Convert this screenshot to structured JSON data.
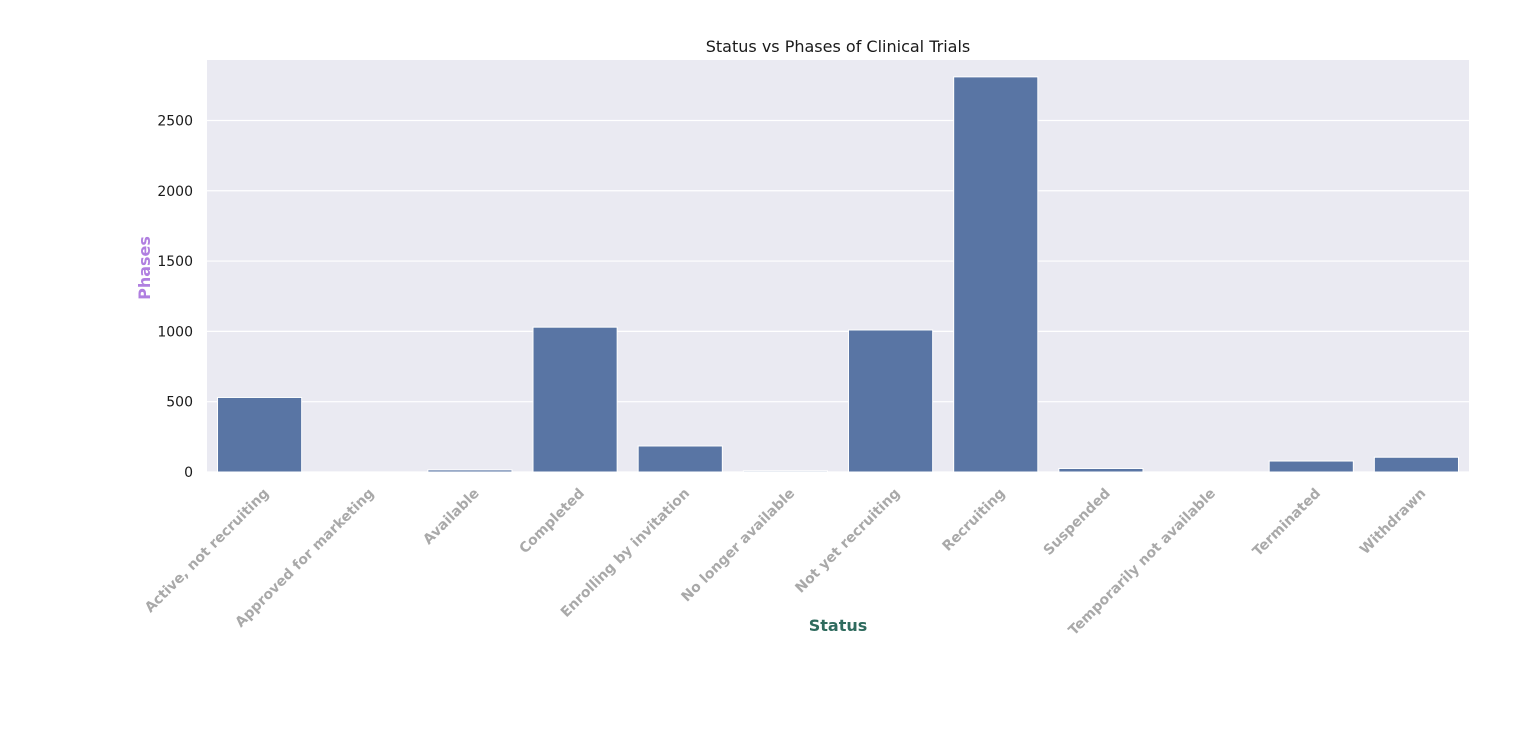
{
  "chart_data": {
    "type": "bar",
    "title": "Status vs Phases of Clinical Trials",
    "xlabel": "Status",
    "ylabel": "Phases",
    "categories": [
      "Active, not recruiting",
      "Approved for marketing",
      "Available",
      "Completed",
      "Enrolling by invitation",
      "No longer available",
      "Not yet recruiting",
      "Recruiting",
      "Suspended",
      "Temporarily not available",
      "Terminated",
      "Withdrawn"
    ],
    "values": [
      530,
      0,
      15,
      1030,
      185,
      8,
      1010,
      2810,
      25,
      0,
      78,
      105
    ],
    "yticks": [
      0,
      500,
      1000,
      1500,
      2000,
      2500
    ],
    "ylim": [
      0,
      2930
    ],
    "grid": true,
    "colors": {
      "bar": "#5975a4",
      "plot_background": "#eaeaf2",
      "grid": "#ffffff",
      "xtick_label": "#a9a9a9",
      "ylabel": "#b07fe0",
      "xlabel": "#2f6b5e"
    }
  }
}
